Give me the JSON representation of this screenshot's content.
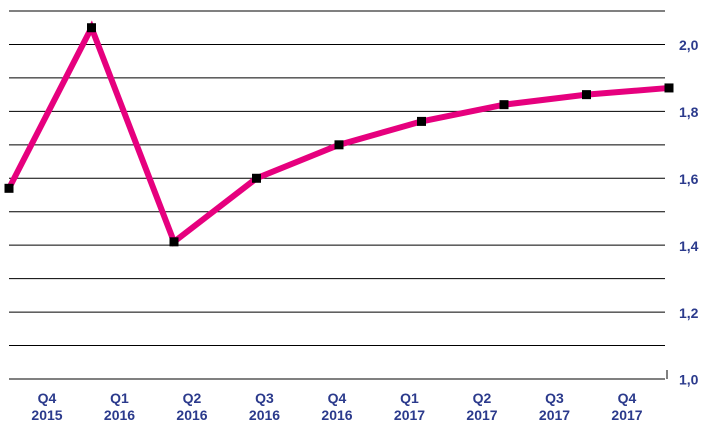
{
  "chart_data": {
    "type": "line",
    "categories": [
      "Q4 2015",
      "Q1 2016",
      "Q2 2016",
      "Q3 2016",
      "Q4 2016",
      "Q1 2017",
      "Q2 2017",
      "Q3 2017",
      "Q4 2017"
    ],
    "series": [
      {
        "color": "#e6007e",
        "marker_color": "#000000",
        "values": [
          1.57,
          2.05,
          1.41,
          1.6,
          1.7,
          1.77,
          1.82,
          1.85,
          1.87
        ]
      }
    ],
    "ylim": [
      1.0,
      2.1
    ],
    "yticks": [
      {
        "value": 1.0,
        "label": "1,0"
      },
      {
        "value": 1.2,
        "label": "1,2"
      },
      {
        "value": 1.4,
        "label": "1,4"
      },
      {
        "value": 1.6,
        "label": "1,6"
      },
      {
        "value": 1.8,
        "label": "1,8"
      },
      {
        "value": 2.0,
        "label": "2,0"
      }
    ],
    "minor_yticks": [
      1.1,
      1.3,
      1.5,
      1.7,
      1.9,
      2.1
    ],
    "grid": true,
    "y_axis_side": "right"
  }
}
